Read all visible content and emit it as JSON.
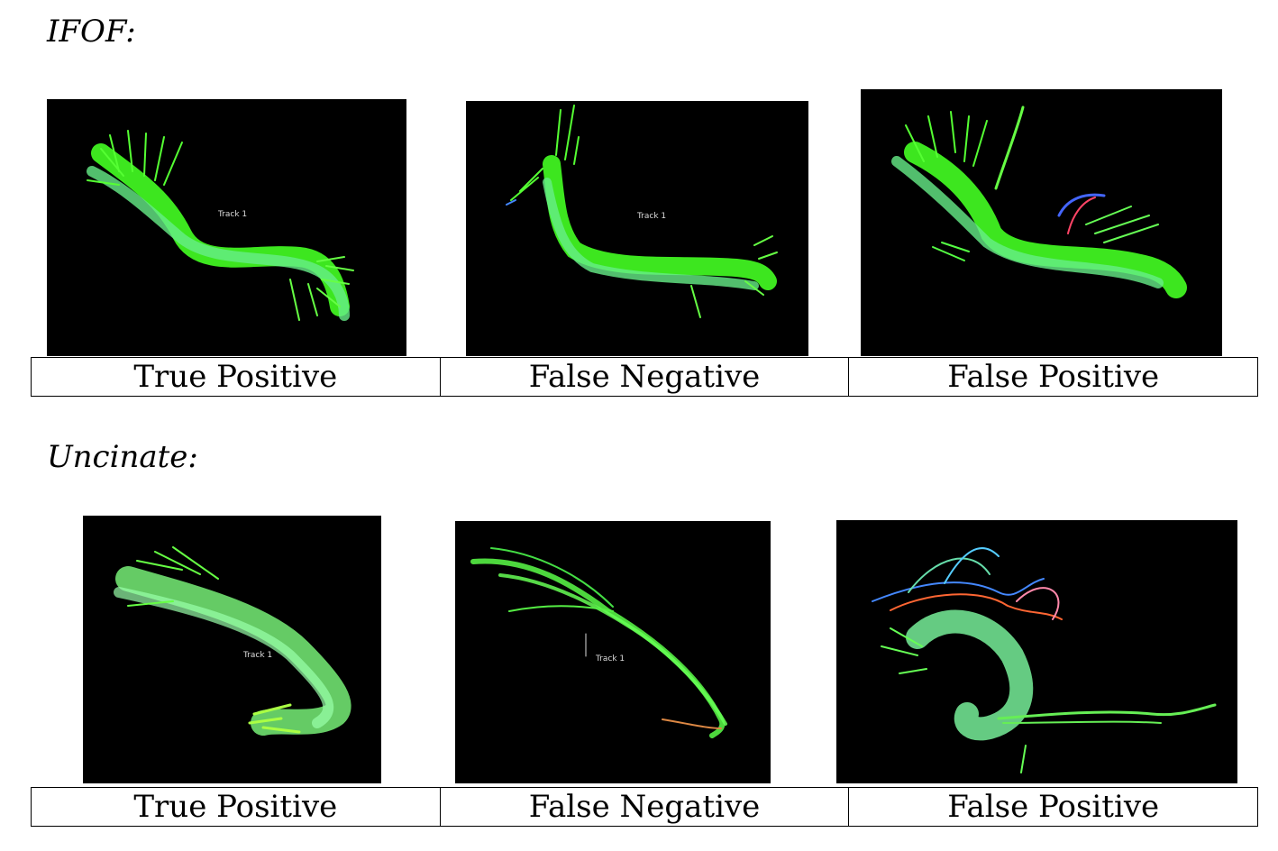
{
  "sections": [
    {
      "heading": "IFOF:",
      "panels": [
        {
          "label": "True Positive",
          "track_text": "Track 1",
          "image": "ifof-true-positive-tractography"
        },
        {
          "label": "False Negative",
          "track_text": "Track 1",
          "image": "ifof-false-negative-tractography"
        },
        {
          "label": "False Positive",
          "track_text": "",
          "image": "ifof-false-positive-tractography"
        }
      ]
    },
    {
      "heading": "Uncinate:",
      "panels": [
        {
          "label": "True Positive",
          "track_text": "Track 1",
          "image": "uncinate-true-positive-tractography"
        },
        {
          "label": "False Negative",
          "track_text": "Track 1",
          "image": "uncinate-false-negative-tractography"
        },
        {
          "label": "False Positive",
          "track_text": "",
          "image": "uncinate-false-positive-tractography"
        }
      ]
    }
  ],
  "colors": {
    "background": "#ffffff",
    "panel": "#000000",
    "fiber_primary": "#44ff22",
    "fiber_secondary": "#66ee88",
    "fiber_accent": "#4488ff"
  }
}
